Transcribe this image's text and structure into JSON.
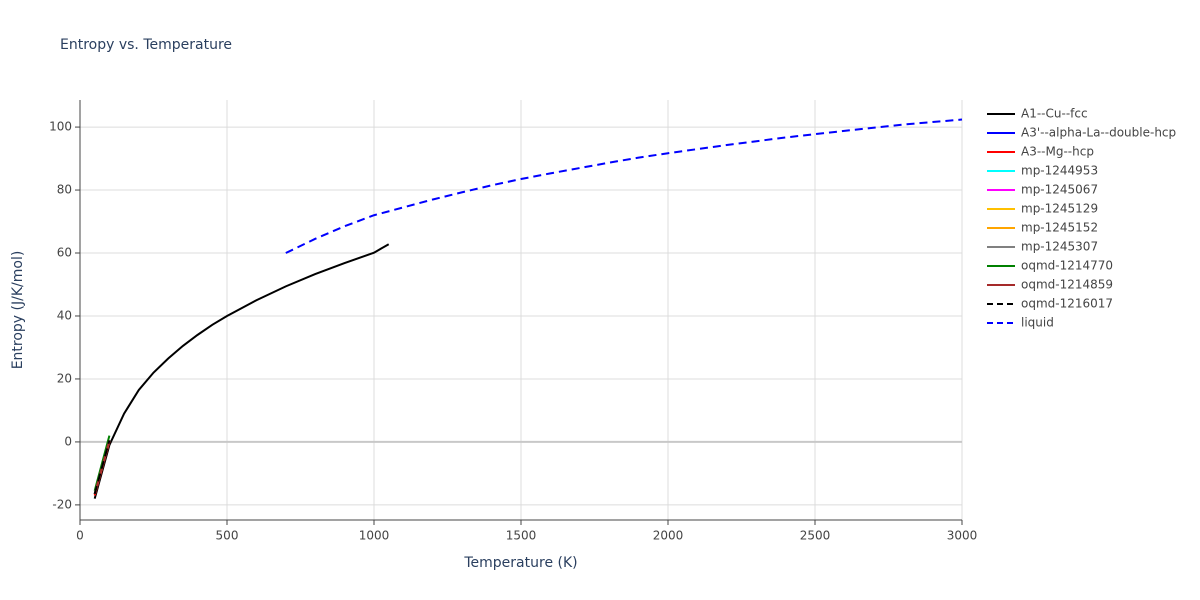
{
  "chart_data": {
    "type": "line",
    "title": "Entropy vs. Temperature",
    "xlabel": "Temperature (K)",
    "ylabel": "Entropy (J/K/mol)",
    "xlim": [
      0,
      3000
    ],
    "xticks": [
      0,
      500,
      1000,
      1500,
      2000,
      2500,
      3000
    ],
    "ylim": [
      -24.8,
      108.6
    ],
    "yticks": [
      -20,
      0,
      20,
      40,
      60,
      80,
      100
    ],
    "grid": true,
    "legend": "right",
    "series": [
      {
        "name": "A1--Cu--fcc",
        "color": "#000000",
        "dash": "solid",
        "x": [
          50,
          100,
          150,
          200,
          250,
          300,
          350,
          400,
          450,
          500,
          600,
          700,
          800,
          900,
          1000,
          1050
        ],
        "values": [
          -18,
          -1,
          9,
          16.5,
          22,
          26.5,
          30.5,
          34,
          37.2,
          40,
          45,
          49.4,
          53.3,
          56.8,
          60.1,
          62.8
        ]
      },
      {
        "name": "A3'--alpha-La--double-hcp",
        "color": "#0000ff",
        "dash": "solid",
        "x": [
          50,
          100
        ],
        "values": [
          -16.5,
          0.5
        ]
      },
      {
        "name": "A3--Mg--hcp",
        "color": "#ff0000",
        "dash": "solid",
        "x": [
          50,
          100
        ],
        "values": [
          -17,
          0
        ]
      },
      {
        "name": "mp-1244953",
        "color": "#00ffff",
        "dash": "solid",
        "x": [
          50,
          100
        ],
        "values": [
          -16.5,
          0.5
        ]
      },
      {
        "name": "mp-1245067",
        "color": "#ff00ff",
        "dash": "solid",
        "x": [
          50,
          100
        ],
        "values": [
          -16.5,
          0.5
        ]
      },
      {
        "name": "mp-1245129",
        "color": "#ffc000",
        "dash": "solid",
        "x": [
          50,
          100
        ],
        "values": [
          -16.5,
          0.5
        ]
      },
      {
        "name": "mp-1245152",
        "color": "#ffa500",
        "dash": "solid",
        "x": [
          50,
          100
        ],
        "values": [
          -16.5,
          0.5
        ]
      },
      {
        "name": "mp-1245307",
        "color": "#808080",
        "dash": "solid",
        "x": [
          50,
          100
        ],
        "values": [
          -16.5,
          0.5
        ]
      },
      {
        "name": "oqmd-1214770",
        "color": "#008000",
        "dash": "solid",
        "x": [
          50,
          100
        ],
        "values": [
          -15.5,
          2
        ]
      },
      {
        "name": "oqmd-1214859",
        "color": "#a52a2a",
        "dash": "solid",
        "x": [
          50,
          100
        ],
        "values": [
          -16.5,
          0.5
        ]
      },
      {
        "name": "oqmd-1216017",
        "color": "#000000",
        "dash": "dash",
        "x": [
          50,
          100
        ],
        "values": [
          -16.5,
          0.5
        ]
      },
      {
        "name": "liquid",
        "color": "#0000ff",
        "dash": "dash",
        "x": [
          700,
          800,
          900,
          1000,
          1100,
          1200,
          1300,
          1400,
          1500,
          1600,
          1700,
          1800,
          1900,
          2000,
          2200,
          2400,
          2600,
          2800,
          3000
        ],
        "values": [
          60,
          64.5,
          68.5,
          72,
          74.5,
          77,
          79.3,
          81.5,
          83.5,
          85.3,
          87,
          88.7,
          90.3,
          91.7,
          94.3,
          96.7,
          98.8,
          100.8,
          102.4
        ]
      }
    ]
  }
}
